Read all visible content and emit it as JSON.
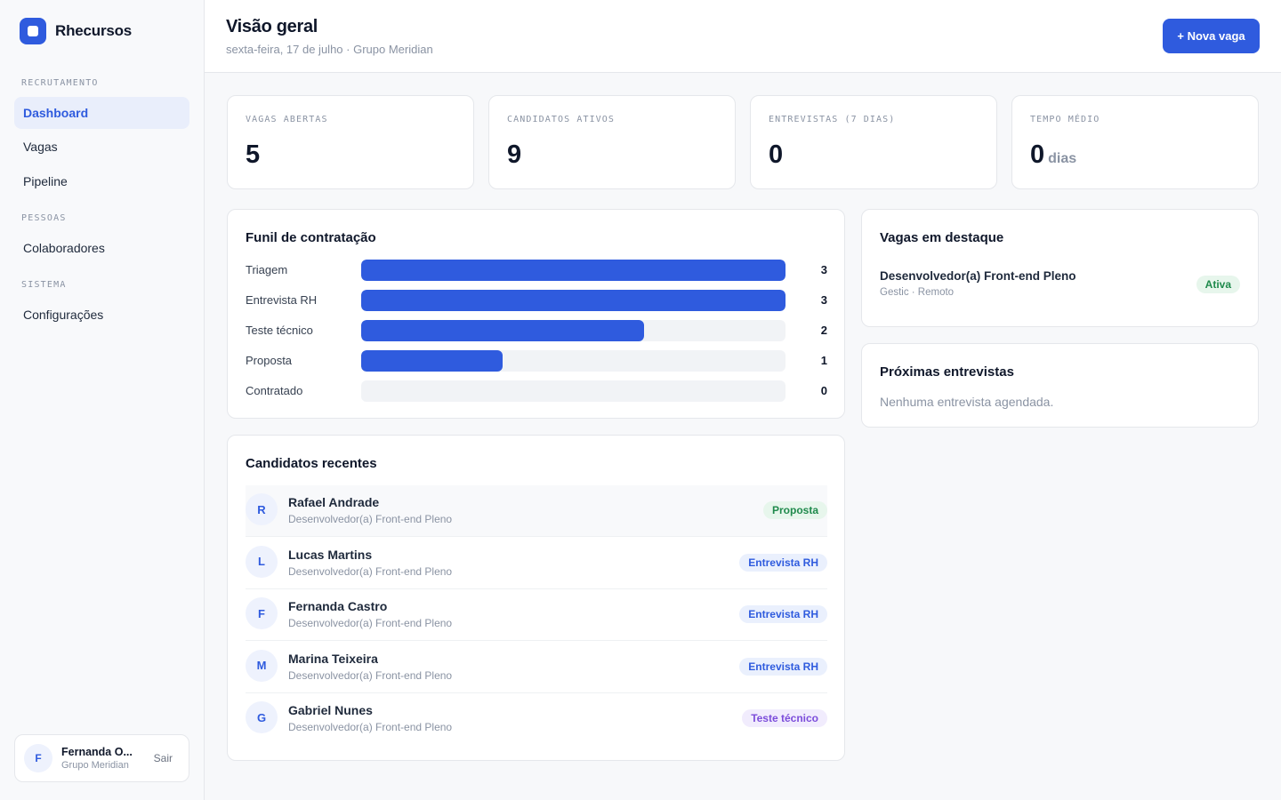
{
  "brand": {
    "name": "Rhecursos"
  },
  "sidebar": {
    "sections": [
      {
        "label": "RECRUTAMENTO",
        "items": [
          {
            "label": "Dashboard",
            "active": true
          },
          {
            "label": "Vagas"
          },
          {
            "label": "Pipeline"
          }
        ]
      },
      {
        "label": "PESSOAS",
        "items": [
          {
            "label": "Colaboradores"
          }
        ]
      },
      {
        "label": "SISTEMA",
        "items": [
          {
            "label": "Configurações"
          }
        ]
      }
    ],
    "user": {
      "initial": "F",
      "name": "Fernanda O...",
      "org": "Grupo Meridian",
      "logout_label": "Sair"
    }
  },
  "header": {
    "title": "Visão geral",
    "subtitle": "sexta-feira, 17 de julho · Grupo Meridian",
    "new_button_label": "+ Nova vaga"
  },
  "stats": [
    {
      "label": "VAGAS ABERTAS",
      "value": "5",
      "unit": ""
    },
    {
      "label": "CANDIDATOS ATIVOS",
      "value": "9",
      "unit": ""
    },
    {
      "label": "ENTREVISTAS (7 DIAS)",
      "value": "0",
      "unit": ""
    },
    {
      "label": "TEMPO MÉDIO",
      "value": "0",
      "unit": "dias"
    }
  ],
  "funnel": {
    "title": "Funil de contratação",
    "max": 3,
    "stages": [
      {
        "label": "Triagem",
        "count": 3
      },
      {
        "label": "Entrevista RH",
        "count": 3
      },
      {
        "label": "Teste técnico",
        "count": 2
      },
      {
        "label": "Proposta",
        "count": 1
      },
      {
        "label": "Contratado",
        "count": 0
      }
    ]
  },
  "recent": {
    "title": "Candidatos recentes",
    "candidates": [
      {
        "initial": "R",
        "name": "Rafael Andrade",
        "role": "Desenvolvedor(a) Front-end Pleno",
        "stage": "Proposta",
        "color": "green"
      },
      {
        "initial": "L",
        "name": "Lucas Martins",
        "role": "Desenvolvedor(a) Front-end Pleno",
        "stage": "Entrevista RH",
        "color": "blue"
      },
      {
        "initial": "F",
        "name": "Fernanda Castro",
        "role": "Desenvolvedor(a) Front-end Pleno",
        "stage": "Entrevista RH",
        "color": "blue"
      },
      {
        "initial": "M",
        "name": "Marina Teixeira",
        "role": "Desenvolvedor(a) Front-end Pleno",
        "stage": "Entrevista RH",
        "color": "blue"
      },
      {
        "initial": "G",
        "name": "Gabriel Nunes",
        "role": "Desenvolvedor(a) Front-end Pleno",
        "stage": "Teste técnico",
        "color": "purple"
      }
    ]
  },
  "featured": {
    "title": "Vagas em destaque",
    "job": {
      "title": "Desenvolvedor(a) Front-end Pleno",
      "meta": "Gestic · Remoto",
      "status": "Ativa"
    }
  },
  "interviews": {
    "title": "Próximas entrevistas",
    "empty_text": "Nenhuma entrevista agendada."
  },
  "colors": {
    "accent": "#2f5bde",
    "success": "#1f8a4c",
    "purple": "#7c4ddb"
  }
}
